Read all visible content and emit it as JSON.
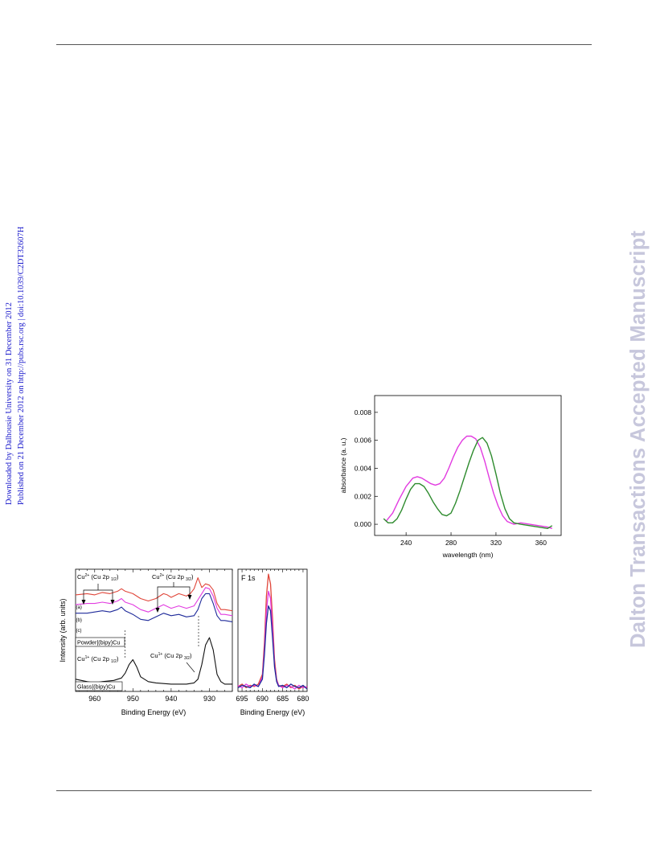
{
  "margin_note": {
    "line1": "Downloaded by Dalhousie University on 31 December 2012",
    "line2": "Published on 21 December 2012 on http://pubs.rsc.org | doi:10.1039/C2DT32607H"
  },
  "watermark": "Dalton Transactions Accepted Manuscript",
  "colors": {
    "magenta": "#e23be0",
    "green": "#2e8b2e",
    "red": "#e0463a",
    "blue": "#1e2a9a",
    "black": "#111111",
    "watermark": "#c7c7dc"
  },
  "uv_chart": {
    "chart_data": {
      "type": "line",
      "xlabel": "wavelength (nm)",
      "ylabel": "absorbance (a. u.)",
      "xlim": [
        212,
        378
      ],
      "ylim": [
        -0.0008,
        0.0092
      ],
      "x_ticks": [
        "240",
        "280",
        "320",
        "360"
      ],
      "y_ticks": [
        "0.000",
        "0.002",
        "0.004",
        "0.006",
        "0.008"
      ],
      "series": [
        {
          "color": "#e23be0",
          "x": [
            222,
            228,
            234,
            240,
            246,
            250,
            254,
            258,
            262,
            266,
            270,
            274,
            278,
            282,
            286,
            290,
            294,
            298,
            302,
            306,
            310,
            314,
            318,
            322,
            326,
            330,
            336,
            342,
            350,
            358,
            366,
            370
          ],
          "y": [
            0.0002,
            0.0008,
            0.0018,
            0.0027,
            0.0033,
            0.0034,
            0.0033,
            0.0031,
            0.0029,
            0.0028,
            0.0029,
            0.0033,
            0.004,
            0.0048,
            0.0055,
            0.006,
            0.0063,
            0.0063,
            0.0061,
            0.0055,
            0.0045,
            0.0033,
            0.0022,
            0.0013,
            0.0006,
            0.0002,
            0.0,
            0.0001,
            0.0,
            -0.0001,
            -0.0002,
            -0.0003
          ]
        },
        {
          "color": "#2e8b2e",
          "x": [
            220,
            224,
            228,
            232,
            236,
            240,
            244,
            248,
            252,
            256,
            260,
            264,
            268,
            272,
            276,
            280,
            284,
            288,
            292,
            296,
            300,
            304,
            308,
            312,
            316,
            320,
            324,
            328,
            332,
            336,
            342,
            350,
            358,
            366,
            370
          ],
          "y": [
            0.0004,
            0.0001,
            0.0001,
            0.0004,
            0.001,
            0.0018,
            0.0025,
            0.0029,
            0.0029,
            0.0027,
            0.0022,
            0.0016,
            0.0011,
            0.0007,
            0.0006,
            0.0008,
            0.0015,
            0.0024,
            0.0034,
            0.0044,
            0.0053,
            0.006,
            0.0062,
            0.0058,
            0.0049,
            0.0036,
            0.0022,
            0.0011,
            0.0004,
            0.0001,
            0.0,
            -0.0001,
            -0.0002,
            -0.0003,
            -0.0001
          ]
        }
      ]
    }
  },
  "xps_chart": {
    "panel_a": {
      "chart_data": {
        "type": "line",
        "xlabel": "Binding Energy (eV)",
        "ylabel": "Intensity (arb. units)",
        "xlim": [
          965,
          924
        ],
        "ylim": [
          0,
          100
        ],
        "x_ticks": [
          "960",
          "950",
          "940",
          "930"
        ],
        "series": [
          {
            "label": "(a)",
            "color": "#e0463a",
            "x": [
              965,
              962,
              960,
              958,
              956,
              954,
              953,
              952,
              950,
              948,
              946,
              944,
              942,
              941,
              940,
              938,
              936,
              935,
              934,
              933,
              932,
              931,
              930,
              929,
              928,
              927,
              926,
              924
            ],
            "y": [
              79,
              80,
              79,
              81,
              80,
              82,
              84,
              82,
              80,
              76,
              74,
              76,
              80,
              79,
              77,
              80,
              78,
              80,
              84,
              93,
              85,
              88,
              87,
              83,
              72,
              67,
              67,
              66
            ]
          },
          {
            "label": "(b)",
            "color": "#e23be0",
            "x": [
              965,
              962,
              960,
              958,
              956,
              954,
              953,
              952,
              950,
              948,
              946,
              944,
              942,
              940,
              938,
              936,
              934,
              933,
              932,
              931,
              930,
              929,
              928,
              927,
              926,
              924
            ],
            "y": [
              71,
              72,
              72,
              73,
              72,
              74,
              76,
              73,
              71,
              67,
              65,
              68,
              71,
              68,
              70,
              68,
              70,
              75,
              80,
              85,
              84,
              78,
              68,
              63,
              63,
              62
            ]
          },
          {
            "label": "(c)",
            "color": "#1e2a9a",
            "x": [
              965,
              962,
              960,
              958,
              956,
              954,
              953,
              952,
              950,
              948,
              946,
              944,
              942,
              940,
              938,
              936,
              934,
              933,
              932,
              931,
              930,
              929,
              928,
              927,
              926,
              924
            ],
            "y": [
              64,
              64,
              65,
              66,
              65,
              67,
              69,
              66,
              63,
              59,
              58,
              61,
              64,
              62,
              63,
              61,
              62,
              67,
              76,
              80,
              80,
              72,
              62,
              58,
              58,
              57
            ]
          },
          {
            "label": "Glass|(bipy)Cu",
            "color": "#111111",
            "x": [
              965,
              962,
              960,
              958,
              955,
              953,
              952,
              951,
              950,
              949,
              948,
              946,
              944,
              940,
              936,
              934,
              933,
              932,
              931,
              930,
              929,
              928,
              927,
              926,
              924
            ],
            "y": [
              10,
              8,
              7,
              8,
              9,
              11,
              15,
              22,
              26,
              20,
              12,
              8,
              7,
              6,
              6,
              7,
              10,
              22,
              38,
              44,
              34,
              14,
              8,
              6,
              6
            ]
          }
        ]
      },
      "labels": {
        "cu2_left": "Cu",
        "cu2_left_sup": "2+",
        "cu2_left_orb": " (Cu 2p ",
        "cu2_left_sub": "1/2",
        "cu2_left_close": ")",
        "cu2_right": "Cu",
        "cu2_right_sup": "2+",
        "cu2_right_orb": " (Cu 2p ",
        "cu2_right_sub": "3/2",
        "cu2_right_close": ")",
        "cu1_left": "Cu",
        "cu1_left_sup": "1+",
        "cu1_left_orb": " (Cu 2p ",
        "cu1_left_sub": "1/2",
        "cu1_left_close": ")",
        "cu1_right": "Cu",
        "cu1_right_sup": "1+",
        "cu1_right_orb": " (Cu 2p ",
        "cu1_right_sub": "3/2",
        "cu1_right_close": ")",
        "series_a": "(a)",
        "series_b": "(b)",
        "series_c": "(c)",
        "box_powder": "Powder|(bipy)Cu",
        "box_glass": "Glass|(bipy)Cu"
      }
    },
    "panel_b": {
      "chart_data": {
        "type": "line",
        "title": "F 1s",
        "xlabel": "Binding Energy (eV)",
        "xlim": [
          696,
          679
        ],
        "ylim": [
          0,
          100
        ],
        "x_ticks": [
          "695",
          "690",
          "685",
          "680"
        ],
        "series": [
          {
            "color": "#e0463a",
            "x": [
              696,
              695,
              694,
              693,
              692,
              691,
              690,
              689.5,
              689,
              688.5,
              688,
              687.5,
              687,
              686.5,
              686,
              685,
              684,
              683,
              682,
              681,
              680,
              679
            ],
            "y": [
              4,
              6,
              3,
              5,
              4,
              6,
              14,
              40,
              78,
              96,
              88,
              60,
              26,
              10,
              5,
              4,
              6,
              3,
              5,
              2,
              4,
              3
            ]
          },
          {
            "color": "#e23be0",
            "x": [
              696,
              695,
              694,
              693,
              692,
              691,
              690,
              689.5,
              689,
              688.5,
              688,
              687.5,
              687,
              686.5,
              686,
              685,
              684,
              683,
              682,
              681,
              680,
              679
            ],
            "y": [
              5,
              3,
              6,
              4,
              5,
              4,
              12,
              34,
              66,
              82,
              76,
              52,
              22,
              9,
              5,
              3,
              5,
              4,
              2,
              5,
              3,
              4
            ]
          },
          {
            "color": "#1e2a9a",
            "x": [
              696,
              695,
              694,
              693,
              692,
              691,
              690,
              689.5,
              689,
              688.5,
              688,
              687.5,
              687,
              686.5,
              686,
              685,
              684,
              683,
              682,
              681,
              680,
              679
            ],
            "y": [
              3,
              5,
              4,
              3,
              6,
              4,
              10,
              30,
              56,
              70,
              66,
              44,
              20,
              8,
              4,
              5,
              3,
              6,
              4,
              3,
              5,
              2
            ]
          }
        ]
      }
    }
  }
}
